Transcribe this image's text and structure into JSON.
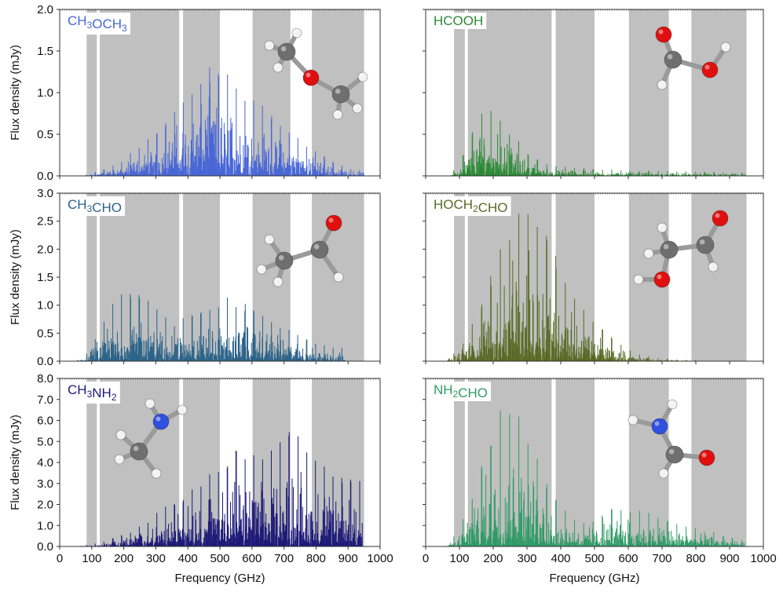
{
  "figure": {
    "xlabel": "Frequency (GHz)",
    "ylabel": "Flux density (mJy)",
    "x_ticks": [
      0,
      100,
      200,
      300,
      400,
      500,
      600,
      700,
      800,
      900,
      1000
    ]
  },
  "colors": {
    "band": "#c0c0c0",
    "CH3OCH3": "#4766d6",
    "HCOOH": "#2a8a34",
    "CH3CHO": "#2c6389",
    "HOCH2CHO": "#5a6a24",
    "CH3NH2": "#1d1a78",
    "NH2CHO": "#2f9a66"
  },
  "shaded_bands_ghz": [
    [
      84,
      116
    ],
    [
      125,
      373
    ],
    [
      385,
      500
    ],
    [
      602,
      720
    ],
    [
      787,
      950
    ]
  ],
  "chart_data": [
    {
      "type": "bar",
      "panel": "top-left",
      "molecule": "CH3OCH3",
      "label_parts": [
        {
          "t": "CH"
        },
        {
          "t": "3",
          "sub": true
        },
        {
          "t": "OCH"
        },
        {
          "t": "3",
          "sub": true
        }
      ],
      "xlim": [
        0,
        1000
      ],
      "ylim": [
        0,
        2.0
      ],
      "yticks": [
        0.0,
        0.5,
        1.0,
        1.5,
        2.0
      ],
      "x_range": [
        70,
        950
      ],
      "envelope": [
        [
          70,
          0.0
        ],
        [
          100,
          0.03
        ],
        [
          150,
          0.1
        ],
        [
          200,
          0.2
        ],
        [
          250,
          0.37
        ],
        [
          300,
          0.55
        ],
        [
          350,
          0.8
        ],
        [
          400,
          1.05
        ],
        [
          430,
          1.25
        ],
        [
          450,
          1.33
        ],
        [
          500,
          1.3
        ],
        [
          530,
          1.28
        ],
        [
          560,
          1.15
        ],
        [
          600,
          0.95
        ],
        [
          650,
          0.8
        ],
        [
          700,
          0.62
        ],
        [
          740,
          0.5
        ],
        [
          800,
          0.32
        ],
        [
          850,
          0.18
        ],
        [
          900,
          0.1
        ],
        [
          950,
          0.06
        ]
      ],
      "series_color": "CH3OCH3"
    },
    {
      "type": "bar",
      "panel": "top-right",
      "molecule": "HCOOH",
      "label_parts": [
        {
          "t": "HCOOH"
        }
      ],
      "xlim": [
        0,
        1000
      ],
      "ylim": [
        0,
        2.0
      ],
      "yticks": [
        0.0,
        0.5,
        1.0,
        1.5,
        2.0
      ],
      "x_range": [
        70,
        950
      ],
      "envelope": [
        [
          70,
          0.02
        ],
        [
          100,
          0.15
        ],
        [
          130,
          0.45
        ],
        [
          160,
          0.75
        ],
        [
          180,
          0.88
        ],
        [
          200,
          0.85
        ],
        [
          230,
          0.7
        ],
        [
          260,
          0.5
        ],
        [
          300,
          0.3
        ],
        [
          350,
          0.15
        ],
        [
          400,
          0.12
        ],
        [
          450,
          0.1
        ],
        [
          500,
          0.08
        ],
        [
          600,
          0.07
        ],
        [
          700,
          0.06
        ],
        [
          800,
          0.05
        ],
        [
          900,
          0.04
        ],
        [
          950,
          0.04
        ]
      ],
      "series_color": "HCOOH"
    },
    {
      "type": "bar",
      "panel": "middle-left",
      "molecule": "CH3CHO",
      "label_parts": [
        {
          "t": "CH"
        },
        {
          "t": "3",
          "sub": true
        },
        {
          "t": "CHO"
        }
      ],
      "xlim": [
        0,
        1000
      ],
      "ylim": [
        0,
        3.0
      ],
      "yticks": [
        0.0,
        0.5,
        1.0,
        1.5,
        2.0,
        2.5,
        3.0
      ],
      "x_range": [
        50,
        890
      ],
      "envelope": [
        [
          50,
          0.0
        ],
        [
          80,
          0.1
        ],
        [
          120,
          0.55
        ],
        [
          160,
          1.0
        ],
        [
          200,
          1.25
        ],
        [
          220,
          1.32
        ],
        [
          250,
          1.25
        ],
        [
          300,
          0.95
        ],
        [
          350,
          0.7
        ],
        [
          380,
          0.75
        ],
        [
          420,
          0.92
        ],
        [
          460,
          0.9
        ],
        [
          500,
          0.98
        ],
        [
          520,
          1.15
        ],
        [
          560,
          1.1
        ],
        [
          600,
          0.95
        ],
        [
          650,
          0.8
        ],
        [
          700,
          0.62
        ],
        [
          750,
          0.5
        ],
        [
          800,
          0.32
        ],
        [
          850,
          0.28
        ],
        [
          890,
          0.25
        ]
      ],
      "series_color": "CH3CHO"
    },
    {
      "type": "bar",
      "panel": "middle-right",
      "molecule": "HOCH2CHO",
      "label_parts": [
        {
          "t": "HOCH"
        },
        {
          "t": "2",
          "sub": true
        },
        {
          "t": "CHO"
        }
      ],
      "xlim": [
        0,
        1000
      ],
      "ylim": [
        0,
        3.0
      ],
      "yticks": [
        0.0,
        0.5,
        1.0,
        1.5,
        2.0,
        2.5,
        3.0
      ],
      "x_range": [
        60,
        800
      ],
      "envelope": [
        [
          60,
          0.02
        ],
        [
          100,
          0.25
        ],
        [
          150,
          0.8
        ],
        [
          200,
          1.7
        ],
        [
          250,
          2.5
        ],
        [
          300,
          2.85
        ],
        [
          330,
          2.6
        ],
        [
          370,
          2.1
        ],
        [
          420,
          1.5
        ],
        [
          470,
          0.95
        ],
        [
          520,
          0.6
        ],
        [
          570,
          0.35
        ],
        [
          620,
          0.15
        ],
        [
          680,
          0.06
        ],
        [
          750,
          0.03
        ],
        [
          800,
          0.02
        ]
      ],
      "series_color": "HOCH2CHO"
    },
    {
      "type": "bar",
      "panel": "bottom-left",
      "molecule": "CH3NH2",
      "label_parts": [
        {
          "t": "CH"
        },
        {
          "t": "3",
          "sub": true
        },
        {
          "t": "NH"
        },
        {
          "t": "2",
          "sub": true
        }
      ],
      "xlim": [
        0,
        1000
      ],
      "ylim": [
        0,
        8.0
      ],
      "yticks": [
        0.0,
        1.0,
        2.0,
        3.0,
        4.0,
        5.0,
        6.0,
        7.0,
        8.0
      ],
      "x_range": [
        60,
        945
      ],
      "envelope": [
        [
          60,
          0.05
        ],
        [
          100,
          0.1
        ],
        [
          150,
          0.3
        ],
        [
          200,
          0.6
        ],
        [
          250,
          1.0
        ],
        [
          300,
          1.6
        ],
        [
          350,
          2.1
        ],
        [
          400,
          2.6
        ],
        [
          450,
          3.4
        ],
        [
          500,
          4.1
        ],
        [
          550,
          4.6
        ],
        [
          600,
          4.7
        ],
        [
          650,
          4.4
        ],
        [
          700,
          5.3
        ],
        [
          740,
          5.7
        ],
        [
          780,
          4.3
        ],
        [
          850,
          3.6
        ],
        [
          900,
          3.1
        ],
        [
          945,
          3.8
        ]
      ],
      "series_color": "CH3NH2"
    },
    {
      "type": "bar",
      "panel": "bottom-right",
      "molecule": "NH2CHO",
      "label_parts": [
        {
          "t": "NH"
        },
        {
          "t": "2",
          "sub": true
        },
        {
          "t": "CHO"
        }
      ],
      "xlim": [
        0,
        1000
      ],
      "ylim": [
        0,
        8.0
      ],
      "yticks": [
        0.0,
        1.0,
        2.0,
        3.0,
        4.0,
        5.0,
        6.0,
        7.0,
        8.0
      ],
      "x_range": [
        60,
        950
      ],
      "envelope": [
        [
          60,
          0.05
        ],
        [
          100,
          0.8
        ],
        [
          150,
          3.2
        ],
        [
          200,
          5.8
        ],
        [
          240,
          7.2
        ],
        [
          270,
          6.8
        ],
        [
          300,
          5.5
        ],
        [
          340,
          3.8
        ],
        [
          380,
          2.5
        ],
        [
          420,
          1.6
        ],
        [
          470,
          1.2
        ],
        [
          520,
          1.5
        ],
        [
          560,
          2.0
        ],
        [
          600,
          1.9
        ],
        [
          650,
          1.7
        ],
        [
          700,
          1.3
        ],
        [
          750,
          1.1
        ],
        [
          800,
          0.9
        ],
        [
          850,
          0.7
        ],
        [
          900,
          0.45
        ],
        [
          950,
          0.3
        ]
      ],
      "series_color": "NH2CHO"
    }
  ]
}
